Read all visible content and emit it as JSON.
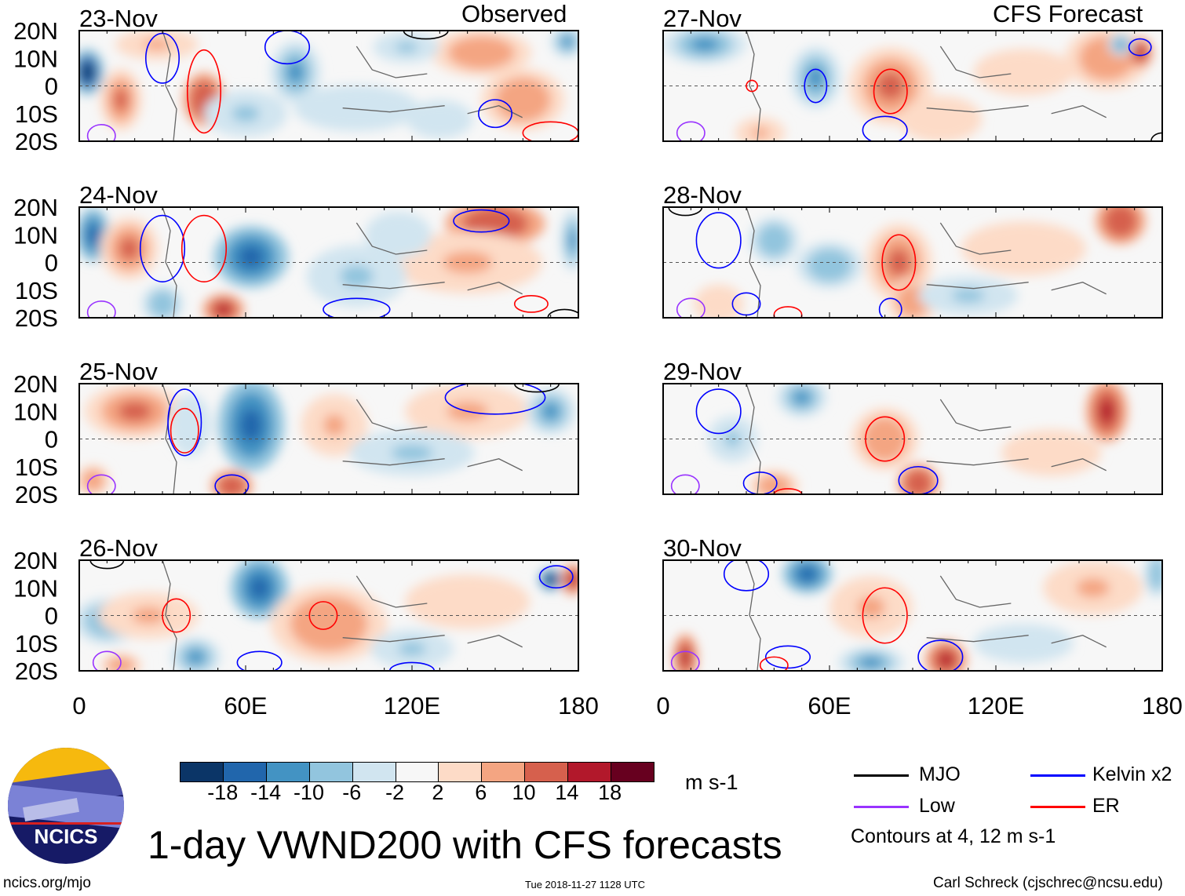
{
  "title": "1-day VWND200 with CFS forecasts",
  "left_header": "Observed",
  "right_header": "CFS Forecast",
  "units": "m s-1",
  "footer": {
    "left": "ncics.org/mjo",
    "center": "Tue 2018-11-27 1128 UTC",
    "right": "Carl Schreck (cjschrec@ncsu.edu)"
  },
  "logo_text": "NCICS",
  "legend": {
    "items": [
      {
        "label": "MJO",
        "color": "#000000"
      },
      {
        "label": "Kelvin x2",
        "color": "#0000ff"
      },
      {
        "label": "Low",
        "color": "#9933ff"
      },
      {
        "label": "ER",
        "color": "#ff0000"
      }
    ],
    "note": "Contours at 4, 12 m s-1"
  },
  "chart_data": {
    "type": "heatmap",
    "variable": "200-hPa meridional wind (VWND200)",
    "lat_ticks": [
      "20N",
      "10N",
      "0",
      "10S",
      "20S"
    ],
    "lon_ticks": [
      "0",
      "60E",
      "120E",
      "180"
    ],
    "lon_range": [
      0,
      180
    ],
    "lat_range": [
      -20,
      20
    ],
    "colorbar": {
      "levels": [
        "-18",
        "-14",
        "-10",
        "-6",
        "-2",
        "2",
        "6",
        "10",
        "14",
        "18"
      ],
      "colors": [
        "#0b3567",
        "#2166ac",
        "#4393c3",
        "#92c5de",
        "#d1e5f0",
        "#f7f7f7",
        "#fddbc7",
        "#f4a582",
        "#d6604d",
        "#b2182b",
        "#67001f"
      ]
    },
    "panels": [
      {
        "date": "23-Nov",
        "column": "left",
        "blobs": [
          [
            3,
            5,
            -20,
            4,
            6
          ],
          [
            15,
            -5,
            12,
            5,
            8
          ],
          [
            45,
            -5,
            14,
            5,
            7
          ],
          [
            28,
            15,
            8,
            10,
            4
          ],
          [
            78,
            5,
            -10,
            6,
            8
          ],
          [
            145,
            12,
            10,
            12,
            6
          ],
          [
            160,
            -5,
            9,
            10,
            8
          ],
          [
            118,
            14,
            -7,
            8,
            4
          ],
          [
            60,
            -10,
            -6,
            10,
            6
          ],
          [
            176,
            16,
            -10,
            4,
            4
          ],
          [
            100,
            -8,
            -5,
            15,
            6
          ],
          [
            130,
            -12,
            -5,
            8,
            5
          ]
        ],
        "contours": [
          [
            "kelvin",
            30,
            10,
            6,
            9
          ],
          [
            "kelvin",
            75,
            14,
            8,
            6
          ],
          [
            "er",
            45,
            -2,
            6,
            15
          ],
          [
            "kelvin",
            150,
            -10,
            6,
            5
          ],
          [
            "er",
            170,
            -17,
            10,
            4
          ],
          [
            "low",
            8,
            -18,
            5,
            4
          ],
          [
            "mjo",
            125,
            20,
            8,
            3
          ]
        ]
      },
      {
        "date": "24-Nov",
        "column": "left",
        "blobs": [
          [
            5,
            10,
            -16,
            4,
            7
          ],
          [
            18,
            5,
            12,
            7,
            8
          ],
          [
            62,
            2,
            -14,
            9,
            8
          ],
          [
            52,
            -17,
            16,
            5,
            4
          ],
          [
            150,
            14,
            14,
            12,
            6
          ],
          [
            140,
            0,
            8,
            18,
            8
          ],
          [
            100,
            -5,
            -7,
            12,
            8
          ],
          [
            178,
            8,
            -12,
            3,
            8
          ],
          [
            115,
            10,
            -5,
            8,
            6
          ],
          [
            30,
            -15,
            -8,
            5,
            5
          ]
        ],
        "contours": [
          [
            "kelvin",
            30,
            5,
            8,
            12
          ],
          [
            "er",
            45,
            5,
            8,
            12
          ],
          [
            "kelvin",
            145,
            15,
            10,
            4
          ],
          [
            "er",
            163,
            -15,
            6,
            3
          ],
          [
            "kelvin",
            100,
            -17,
            12,
            4
          ],
          [
            "low",
            8,
            -18,
            5,
            4
          ],
          [
            "mjo",
            175,
            -20,
            6,
            3
          ]
        ]
      },
      {
        "date": "25-Nov",
        "column": "left",
        "blobs": [
          [
            20,
            10,
            12,
            12,
            7
          ],
          [
            40,
            5,
            -5,
            5,
            8
          ],
          [
            62,
            5,
            -14,
            8,
            12
          ],
          [
            55,
            -17,
            14,
            5,
            4
          ],
          [
            92,
            5,
            8,
            8,
            8
          ],
          [
            140,
            10,
            8,
            15,
            7
          ],
          [
            170,
            10,
            -10,
            6,
            6
          ],
          [
            120,
            -5,
            -6,
            15,
            6
          ],
          [
            5,
            -15,
            10,
            4,
            4
          ]
        ],
        "contours": [
          [
            "er",
            38,
            3,
            5,
            8
          ],
          [
            "kelvin",
            38,
            6,
            6,
            12
          ],
          [
            "kelvin",
            150,
            15,
            18,
            6
          ],
          [
            "kelvin",
            55,
            -17,
            6,
            4
          ],
          [
            "low",
            8,
            -17,
            5,
            4
          ],
          [
            "mjo",
            165,
            20,
            8,
            3
          ]
        ]
      },
      {
        "date": "26-Nov",
        "column": "left",
        "blobs": [
          [
            10,
            -2,
            -8,
            8,
            6
          ],
          [
            25,
            0,
            8,
            12,
            6
          ],
          [
            65,
            10,
            -14,
            7,
            8
          ],
          [
            90,
            -3,
            10,
            14,
            10
          ],
          [
            170,
            13,
            -20,
            3,
            3
          ],
          [
            178,
            13,
            18,
            3,
            4
          ],
          [
            140,
            5,
            6,
            15,
            7
          ],
          [
            120,
            -12,
            -6,
            10,
            5
          ],
          [
            42,
            -15,
            -10,
            6,
            5
          ],
          [
            15,
            -18,
            10,
            5,
            3
          ]
        ],
        "contours": [
          [
            "er",
            35,
            0,
            5,
            6
          ],
          [
            "er",
            88,
            0,
            5,
            5
          ],
          [
            "kelvin",
            65,
            -17,
            8,
            4
          ],
          [
            "kelvin",
            120,
            -20,
            8,
            3
          ],
          [
            "kelvin",
            172,
            14,
            6,
            4
          ],
          [
            "low",
            10,
            -17,
            5,
            4
          ],
          [
            "mjo",
            10,
            20,
            6,
            3
          ]
        ]
      },
      {
        "date": "27-Nov",
        "column": "right",
        "blobs": [
          [
            15,
            15,
            -10,
            10,
            5
          ],
          [
            55,
            3,
            -12,
            6,
            8
          ],
          [
            82,
            0,
            12,
            10,
            10
          ],
          [
            160,
            10,
            10,
            10,
            8
          ],
          [
            172,
            12,
            18,
            3,
            4
          ],
          [
            165,
            15,
            -10,
            3,
            3
          ],
          [
            100,
            -12,
            6,
            10,
            6
          ],
          [
            130,
            5,
            5,
            12,
            6
          ],
          [
            35,
            -17,
            8,
            6,
            4
          ]
        ],
        "contours": [
          [
            "er",
            82,
            -2,
            6,
            8
          ],
          [
            "kelvin",
            55,
            0,
            4,
            6
          ],
          [
            "kelvin",
            80,
            -16,
            8,
            5
          ],
          [
            "kelvin",
            172,
            14,
            4,
            3
          ],
          [
            "er",
            32,
            0,
            2,
            2
          ],
          [
            "low",
            10,
            -17,
            5,
            4
          ],
          [
            "mjo",
            180,
            -20,
            4,
            3
          ]
        ]
      },
      {
        "date": "28-Nov",
        "column": "right",
        "blobs": [
          [
            60,
            -1,
            -8,
            8,
            6
          ],
          [
            85,
            0,
            12,
            8,
            10
          ],
          [
            90,
            -14,
            10,
            6,
            6
          ],
          [
            165,
            15,
            14,
            6,
            6
          ],
          [
            130,
            5,
            6,
            15,
            7
          ],
          [
            110,
            -12,
            -6,
            12,
            5
          ],
          [
            40,
            8,
            -8,
            6,
            6
          ],
          [
            20,
            -15,
            6,
            6,
            5
          ]
        ],
        "contours": [
          [
            "er",
            85,
            0,
            6,
            10
          ],
          [
            "kelvin",
            20,
            8,
            8,
            10
          ],
          [
            "kelvin",
            30,
            -15,
            5,
            4
          ],
          [
            "er",
            45,
            -19,
            5,
            3
          ],
          [
            "kelvin",
            82,
            -17,
            4,
            4
          ],
          [
            "low",
            10,
            -17,
            5,
            4
          ],
          [
            "mjo",
            8,
            20,
            6,
            3
          ]
        ]
      },
      {
        "date": "29-Nov",
        "column": "right",
        "blobs": [
          [
            50,
            15,
            -10,
            6,
            5
          ],
          [
            80,
            0,
            10,
            8,
            8
          ],
          [
            92,
            -16,
            14,
            5,
            5
          ],
          [
            160,
            10,
            16,
            5,
            8
          ],
          [
            140,
            -5,
            6,
            12,
            6
          ],
          [
            40,
            -17,
            10,
            6,
            4
          ],
          [
            25,
            0,
            -6,
            6,
            6
          ]
        ],
        "contours": [
          [
            "er",
            80,
            0,
            7,
            8
          ],
          [
            "kelvin",
            92,
            -15,
            7,
            5
          ],
          [
            "kelvin",
            20,
            10,
            8,
            8
          ],
          [
            "kelvin",
            35,
            -16,
            6,
            4
          ],
          [
            "low",
            8,
            -17,
            5,
            4
          ],
          [
            "er",
            45,
            -20,
            5,
            2
          ]
        ]
      },
      {
        "date": "30-Nov",
        "column": "right",
        "blobs": [
          [
            52,
            15,
            -14,
            6,
            5
          ],
          [
            75,
            3,
            8,
            10,
            8
          ],
          [
            102,
            -16,
            16,
            5,
            5
          ],
          [
            8,
            -15,
            16,
            3,
            6
          ],
          [
            155,
            10,
            8,
            12,
            7
          ],
          [
            75,
            -17,
            -10,
            8,
            4
          ],
          [
            178,
            15,
            -8,
            3,
            6
          ],
          [
            130,
            -10,
            -5,
            12,
            5
          ]
        ],
        "contours": [
          [
            "er",
            80,
            0,
            8,
            10
          ],
          [
            "kelvin",
            30,
            15,
            8,
            6
          ],
          [
            "kelvin",
            45,
            -15,
            8,
            4
          ],
          [
            "kelvin",
            100,
            -15,
            8,
            6
          ],
          [
            "low",
            8,
            -17,
            5,
            4
          ],
          [
            "er",
            40,
            -18,
            5,
            3
          ]
        ]
      }
    ]
  }
}
